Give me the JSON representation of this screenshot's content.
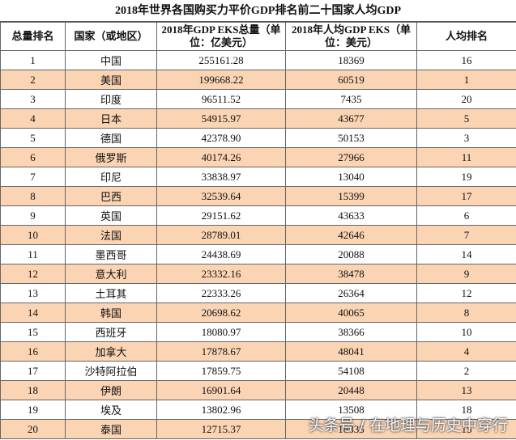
{
  "title": "2018年世界各国购买力平价GDP排名前二十国家人均GDP",
  "table": {
    "header": [
      "总量排名",
      "国家（或地区）",
      "2018年GDP EKS总量（单位：亿美元）",
      "2018年人均GDP EKS（单位：美元）",
      "人均排名"
    ],
    "rows": [
      [
        "1",
        "中国",
        "255161.28",
        "18369",
        "16"
      ],
      [
        "2",
        "美国",
        "199668.22",
        "60519",
        "1"
      ],
      [
        "3",
        "印度",
        "96511.52",
        "7435",
        "20"
      ],
      [
        "4",
        "日本",
        "54915.97",
        "43677",
        "5"
      ],
      [
        "5",
        "德国",
        "42378.90",
        "50153",
        "3"
      ],
      [
        "6",
        "俄罗斯",
        "40174.26",
        "27966",
        "11"
      ],
      [
        "7",
        "印尼",
        "33838.97",
        "13040",
        "19"
      ],
      [
        "8",
        "巴西",
        "32539.64",
        "15399",
        "17"
      ],
      [
        "9",
        "英国",
        "29151.62",
        "43633",
        "6"
      ],
      [
        "10",
        "法国",
        "28789.01",
        "42646",
        "7"
      ],
      [
        "11",
        "墨西哥",
        "24438.69",
        "20088",
        "14"
      ],
      [
        "12",
        "意大利",
        "23332.16",
        "38478",
        "9"
      ],
      [
        "13",
        "土耳其",
        "22333.26",
        "26364",
        "12"
      ],
      [
        "14",
        "韩国",
        "20698.62",
        "40065",
        "8"
      ],
      [
        "15",
        "西班牙",
        "18080.97",
        "38366",
        "10"
      ],
      [
        "16",
        "加拿大",
        "17878.67",
        "48041",
        "4"
      ],
      [
        "17",
        "沙特阿拉伯",
        "17859.75",
        "54108",
        "2"
      ],
      [
        "18",
        "伊朗",
        "16901.64",
        "20448",
        "13"
      ],
      [
        "19",
        "埃及",
        "13802.96",
        "13508",
        "18"
      ],
      [
        "20",
        "泰国",
        "12715.37",
        "18835",
        "15"
      ]
    ]
  },
  "watermark": "头条号 / 在地理与历史中穿行"
}
